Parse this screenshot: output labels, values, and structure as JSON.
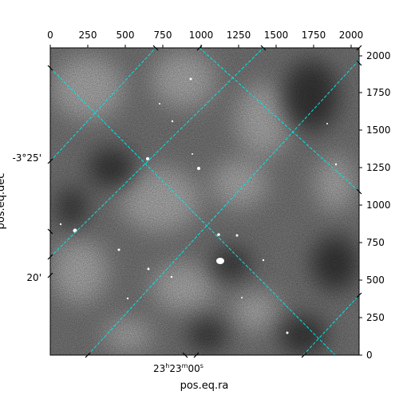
{
  "figure": {
    "xlabel": "pos.eq.ra",
    "ylabel_fragment": "pos.eq.dec",
    "pixel_axis_top_ticks": [
      "0",
      "250",
      "500",
      "750",
      "1000",
      "1250",
      "1500",
      "1750",
      "2000"
    ],
    "pixel_axis_right_ticks": [
      "0",
      "250",
      "500",
      "750",
      "1000",
      "1250",
      "1500",
      "1750",
      "2000"
    ],
    "ra_tick_label": {
      "h": "23",
      "m": "23",
      "s": "00",
      "sup_h": "h",
      "sup_m": "m",
      "sup_s": "s"
    },
    "dec_tick_labels": [
      "-3°25'",
      "20'"
    ],
    "grid_color": "#00e5e5",
    "image_colormap": "gray_r"
  }
}
